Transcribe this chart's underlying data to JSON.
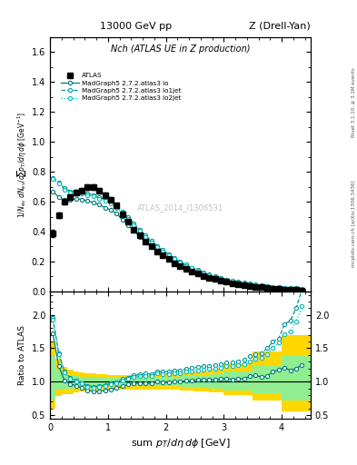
{
  "title_top": "13000 GeV pp",
  "title_right": "Z (Drell-Yan)",
  "inner_title": "Nch (ATLAS UE in Z production)",
  "ylabel_main": "1/N$_{ev}$ dN$_{ev}$/dsum p$_T$/d\\eta d\\phi [GeV$^{-1}$]",
  "ylabel_ratio": "Ratio to ATLAS",
  "xlabel": "sum p$_T$/d\\eta d\\phi [GeV]",
  "right_label": "Rivet 3.1.10, ≥ 3.1M events",
  "right_label2": "mcplots.cern.ch [arXiv:1306.3436]",
  "watermark": "ATLAS_2014_I1306531",
  "teal_lo": "#007B7B",
  "teal_lo1": "#009999",
  "teal_lo2": "#00BBBB",
  "xlim": [
    0,
    4.5
  ],
  "ylim_main": [
    0.0,
    1.7
  ],
  "ylim_ratio": [
    0.45,
    2.35
  ],
  "atlas_x": [
    0.05,
    0.15,
    0.25,
    0.35,
    0.45,
    0.55,
    0.65,
    0.75,
    0.85,
    0.95,
    1.05,
    1.15,
    1.25,
    1.35,
    1.45,
    1.55,
    1.65,
    1.75,
    1.85,
    1.95,
    2.05,
    2.15,
    2.25,
    2.35,
    2.45,
    2.55,
    2.65,
    2.75,
    2.85,
    2.95,
    3.05,
    3.15,
    3.25,
    3.35,
    3.45,
    3.55,
    3.65,
    3.75,
    3.85,
    3.95,
    4.05,
    4.15,
    4.25,
    4.35
  ],
  "atlas_y": [
    0.39,
    0.51,
    0.6,
    0.63,
    0.66,
    0.675,
    0.695,
    0.695,
    0.675,
    0.645,
    0.615,
    0.575,
    0.515,
    0.465,
    0.415,
    0.375,
    0.335,
    0.305,
    0.265,
    0.24,
    0.215,
    0.19,
    0.17,
    0.15,
    0.133,
    0.118,
    0.104,
    0.092,
    0.082,
    0.072,
    0.063,
    0.056,
    0.049,
    0.043,
    0.037,
    0.032,
    0.028,
    0.024,
    0.02,
    0.017,
    0.014,
    0.012,
    0.01,
    0.008
  ],
  "atlas_yerr": [
    0.025,
    0.02,
    0.018,
    0.018,
    0.018,
    0.018,
    0.018,
    0.018,
    0.018,
    0.018,
    0.016,
    0.016,
    0.014,
    0.013,
    0.012,
    0.011,
    0.01,
    0.009,
    0.009,
    0.008,
    0.007,
    0.006,
    0.006,
    0.005,
    0.005,
    0.004,
    0.004,
    0.003,
    0.003,
    0.003,
    0.003,
    0.002,
    0.002,
    0.002,
    0.002,
    0.002,
    0.002,
    0.002,
    0.002,
    0.002,
    0.001,
    0.001,
    0.001,
    0.001
  ],
  "lo_x": [
    0.05,
    0.15,
    0.25,
    0.35,
    0.45,
    0.55,
    0.65,
    0.75,
    0.85,
    0.95,
    1.05,
    1.15,
    1.25,
    1.35,
    1.45,
    1.55,
    1.65,
    1.75,
    1.85,
    1.95,
    2.05,
    2.15,
    2.25,
    2.35,
    2.45,
    2.55,
    2.65,
    2.75,
    2.85,
    2.95,
    3.05,
    3.15,
    3.25,
    3.35,
    3.45,
    3.55,
    3.65,
    3.75,
    3.85,
    3.95,
    4.05,
    4.15,
    4.25,
    4.35
  ],
  "lo_y": [
    0.67,
    0.63,
    0.61,
    0.61,
    0.62,
    0.615,
    0.605,
    0.595,
    0.58,
    0.56,
    0.545,
    0.52,
    0.48,
    0.445,
    0.405,
    0.365,
    0.328,
    0.296,
    0.265,
    0.238,
    0.213,
    0.19,
    0.17,
    0.152,
    0.136,
    0.121,
    0.107,
    0.095,
    0.084,
    0.075,
    0.066,
    0.058,
    0.051,
    0.045,
    0.04,
    0.035,
    0.03,
    0.026,
    0.023,
    0.02,
    0.017,
    0.014,
    0.012,
    0.01
  ],
  "lo1_x": [
    0.05,
    0.15,
    0.25,
    0.35,
    0.45,
    0.55,
    0.65,
    0.75,
    0.85,
    0.95,
    1.05,
    1.15,
    1.25,
    1.35,
    1.45,
    1.55,
    1.65,
    1.75,
    1.85,
    1.95,
    2.05,
    2.15,
    2.25,
    2.35,
    2.45,
    2.55,
    2.65,
    2.75,
    2.85,
    2.95,
    3.05,
    3.15,
    3.25,
    3.35,
    3.45,
    3.55,
    3.65,
    3.75,
    3.85,
    3.95,
    4.05,
    4.15,
    4.25,
    4.35
  ],
  "lo1_y": [
    0.76,
    0.73,
    0.69,
    0.67,
    0.67,
    0.66,
    0.655,
    0.645,
    0.63,
    0.615,
    0.6,
    0.57,
    0.535,
    0.495,
    0.455,
    0.415,
    0.375,
    0.34,
    0.305,
    0.276,
    0.248,
    0.222,
    0.199,
    0.179,
    0.16,
    0.144,
    0.128,
    0.114,
    0.102,
    0.091,
    0.081,
    0.072,
    0.064,
    0.057,
    0.051,
    0.045,
    0.04,
    0.036,
    0.032,
    0.028,
    0.026,
    0.023,
    0.021,
    0.019
  ],
  "lo2_x": [
    0.05,
    0.15,
    0.25,
    0.35,
    0.45,
    0.55,
    0.65,
    0.75,
    0.85,
    0.95,
    1.05,
    1.15,
    1.25,
    1.35,
    1.45,
    1.55,
    1.65,
    1.75,
    1.85,
    1.95,
    2.05,
    2.15,
    2.25,
    2.35,
    2.45,
    2.55,
    2.65,
    2.75,
    2.85,
    2.95,
    3.05,
    3.15,
    3.25,
    3.35,
    3.45,
    3.55,
    3.65,
    3.75,
    3.85,
    3.95,
    4.05,
    4.15,
    4.25,
    4.35
  ],
  "lo2_y": [
    0.75,
    0.72,
    0.68,
    0.66,
    0.66,
    0.655,
    0.645,
    0.635,
    0.62,
    0.605,
    0.59,
    0.56,
    0.525,
    0.485,
    0.445,
    0.405,
    0.365,
    0.33,
    0.298,
    0.268,
    0.24,
    0.215,
    0.192,
    0.172,
    0.154,
    0.138,
    0.123,
    0.11,
    0.098,
    0.087,
    0.078,
    0.069,
    0.061,
    0.054,
    0.048,
    0.043,
    0.038,
    0.034,
    0.03,
    0.027,
    0.024,
    0.021,
    0.019,
    0.017
  ],
  "band_edges": [
    0.0,
    0.1,
    0.2,
    0.3,
    0.4,
    0.5,
    0.6,
    0.7,
    0.8,
    0.9,
    1.0,
    1.25,
    1.5,
    1.75,
    2.0,
    2.25,
    2.5,
    2.75,
    3.0,
    3.5,
    4.0,
    4.5
  ],
  "yellow_lo": [
    0.6,
    0.78,
    0.82,
    0.82,
    0.84,
    0.85,
    0.85,
    0.86,
    0.86,
    0.87,
    0.88,
    0.88,
    0.88,
    0.88,
    0.88,
    0.87,
    0.86,
    0.84,
    0.8,
    0.72,
    0.55,
    0.45
  ],
  "yellow_hi": [
    1.6,
    1.35,
    1.22,
    1.18,
    1.16,
    1.14,
    1.13,
    1.12,
    1.11,
    1.11,
    1.1,
    1.1,
    1.1,
    1.11,
    1.12,
    1.14,
    1.16,
    1.2,
    1.28,
    1.45,
    1.7,
    1.8
  ],
  "green_lo": [
    0.72,
    0.88,
    0.9,
    0.9,
    0.91,
    0.91,
    0.92,
    0.92,
    0.92,
    0.93,
    0.93,
    0.93,
    0.93,
    0.93,
    0.93,
    0.92,
    0.91,
    0.9,
    0.87,
    0.83,
    0.72,
    0.62
  ],
  "green_hi": [
    1.4,
    1.2,
    1.12,
    1.1,
    1.08,
    1.07,
    1.07,
    1.07,
    1.07,
    1.06,
    1.06,
    1.06,
    1.06,
    1.06,
    1.07,
    1.08,
    1.09,
    1.11,
    1.15,
    1.24,
    1.38,
    1.45
  ]
}
